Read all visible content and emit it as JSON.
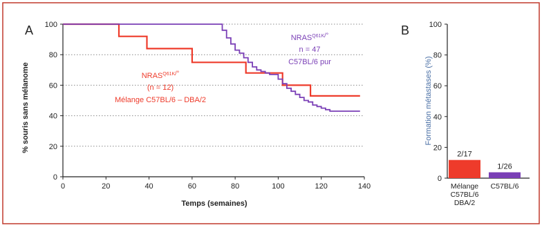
{
  "colors": {
    "frame": "#c0392b",
    "red": "#ee3b2b",
    "purple": "#7a3fb6",
    "gray": "#888888",
    "axis": "#222222",
    "blue_label": "#4a6fa5"
  },
  "chart_data": [
    {
      "panel": "A",
      "type": "line",
      "step": true,
      "xlabel": "Temps (semaines)",
      "ylabel": "% souris sans mélanome",
      "xlim": [
        0,
        140
      ],
      "ylim": [
        0,
        100
      ],
      "xticks": [
        "0",
        "20",
        "40",
        "60",
        "80",
        "100",
        "120",
        "140"
      ],
      "yticks": [
        "0",
        "20",
        "40",
        "60",
        "80",
        "100"
      ],
      "grid": "horizontal dotted",
      "series": [
        {
          "name": "NRAS",
          "superscript": "Q61K",
          "suffix": "/°",
          "n_label": "(n = 12)",
          "strain": "Mélange C57BL/6 – DBA/2",
          "color_key": "red",
          "points": [
            [
              0,
              100
            ],
            [
              26,
              100
            ],
            [
              26,
              92
            ],
            [
              39,
              92
            ],
            [
              39,
              84
            ],
            [
              60,
              84
            ],
            [
              60,
              75
            ],
            [
              85,
              75
            ],
            [
              85,
              68
            ],
            [
              102,
              68
            ],
            [
              102,
              60
            ],
            [
              115,
              60
            ],
            [
              115,
              53
            ],
            [
              138,
              53
            ]
          ]
        },
        {
          "name": "NRAS",
          "superscript": "Q61K",
          "suffix": "/°",
          "n_label": "n = 47",
          "strain": "C57BL/6 pur",
          "color_key": "purple",
          "points": [
            [
              0,
              100
            ],
            [
              73,
              100
            ],
            [
              74,
              96
            ],
            [
              76,
              91
            ],
            [
              78,
              87
            ],
            [
              80,
              83
            ],
            [
              82,
              81
            ],
            [
              84,
              78
            ],
            [
              86,
              75
            ],
            [
              88,
              72
            ],
            [
              90,
              70
            ],
            [
              92,
              69
            ],
            [
              94,
              68
            ],
            [
              96,
              67
            ],
            [
              98,
              67
            ],
            [
              100,
              64
            ],
            [
              102,
              61
            ],
            [
              104,
              58
            ],
            [
              106,
              56
            ],
            [
              108,
              54
            ],
            [
              110,
              52
            ],
            [
              112,
              50
            ],
            [
              114,
              49
            ],
            [
              116,
              47
            ],
            [
              118,
              46
            ],
            [
              120,
              45
            ],
            [
              122,
              44
            ],
            [
              124,
              43
            ],
            [
              138,
              43
            ]
          ]
        }
      ]
    },
    {
      "panel": "B",
      "type": "bar",
      "ylabel": "Formation métastases (%)",
      "ylim": [
        0,
        100
      ],
      "yticks": [
        "0",
        "20",
        "40",
        "60",
        "80",
        "100"
      ],
      "categories": [
        [
          "Mélange",
          "C57BL/6",
          "DBA/2"
        ],
        [
          "C57BL/6"
        ]
      ],
      "values": [
        11.8,
        3.8
      ],
      "data_labels": [
        "2/17",
        "1/26"
      ],
      "color_keys": [
        "red",
        "purple"
      ]
    }
  ]
}
